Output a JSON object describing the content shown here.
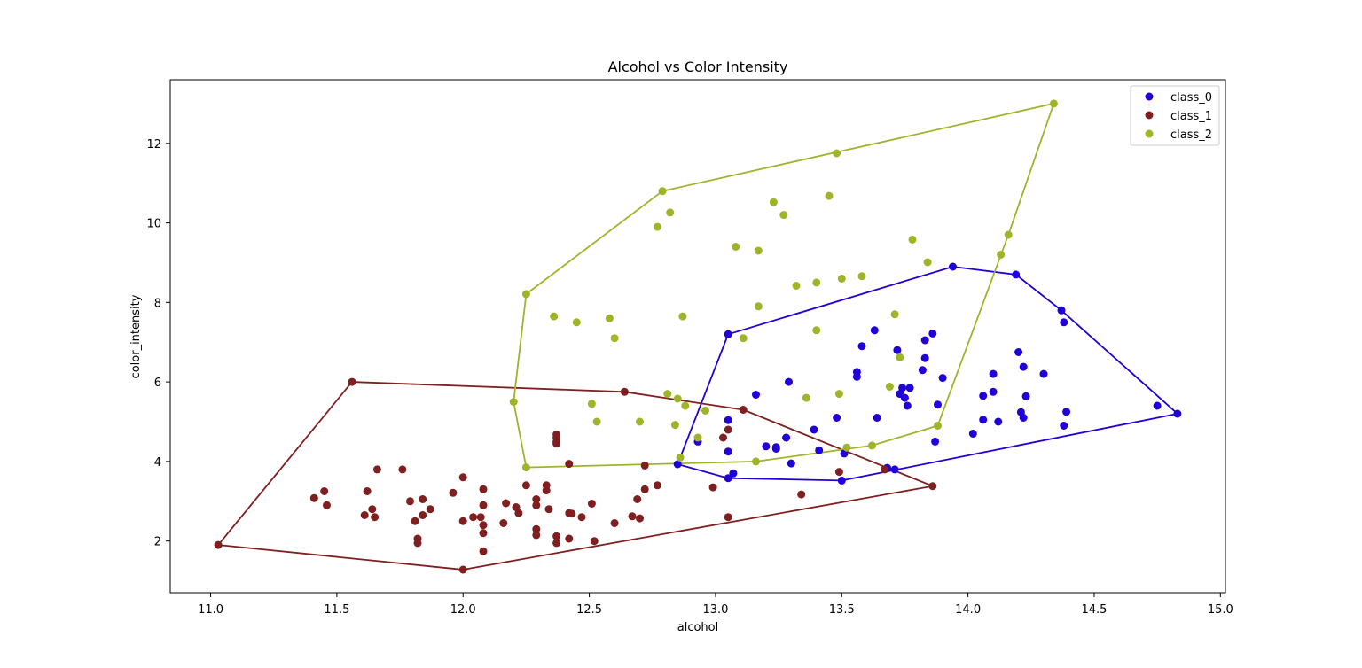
{
  "chart_data": {
    "type": "scatter",
    "title": "Alcohol vs Color Intensity",
    "xlabel": "alcohol",
    "ylabel": "color_intensity",
    "xlim": [
      10.84,
      15.02
    ],
    "ylim": [
      0.7,
      13.6
    ],
    "xticks": [
      11.0,
      11.5,
      12.0,
      12.5,
      13.0,
      13.5,
      14.0,
      14.5,
      15.0
    ],
    "xtick_labels": [
      "11.0",
      "11.5",
      "12.0",
      "12.5",
      "13.0",
      "13.5",
      "14.0",
      "14.5",
      "15.0"
    ],
    "yticks": [
      2,
      4,
      6,
      8,
      10,
      12
    ],
    "ytick_labels": [
      "2",
      "4",
      "6",
      "8",
      "10",
      "12"
    ],
    "grid": false,
    "legend_position": "top-right",
    "hull_lines": true,
    "series": [
      {
        "name": "class_0",
        "color": "#1f00d6",
        "points": [
          [
            14.23,
            5.64
          ],
          [
            13.2,
            4.38
          ],
          [
            13.16,
            5.68
          ],
          [
            14.37,
            7.8
          ],
          [
            13.24,
            4.32
          ],
          [
            14.2,
            6.75
          ],
          [
            14.39,
            5.25
          ],
          [
            14.06,
            5.05
          ],
          [
            14.83,
            5.2
          ],
          [
            13.86,
            7.22
          ],
          [
            14.1,
            5.75
          ],
          [
            14.12,
            5.0
          ],
          [
            13.75,
            5.6
          ],
          [
            14.75,
            5.4
          ],
          [
            14.38,
            7.5
          ],
          [
            13.63,
            7.3
          ],
          [
            14.3,
            6.2
          ],
          [
            13.83,
            6.6
          ],
          [
            14.19,
            8.7
          ],
          [
            13.64,
            5.1
          ],
          [
            14.06,
            5.65
          ],
          [
            12.93,
            4.5
          ],
          [
            13.71,
            3.8
          ],
          [
            12.85,
            3.93
          ],
          [
            13.5,
            3.52
          ],
          [
            13.05,
            3.58
          ],
          [
            13.39,
            4.8
          ],
          [
            13.3,
            3.95
          ],
          [
            13.87,
            4.5
          ],
          [
            14.02,
            4.7
          ],
          [
            13.73,
            5.7
          ],
          [
            13.58,
            6.9
          ],
          [
            13.68,
            3.84
          ],
          [
            13.76,
            5.4
          ],
          [
            13.51,
            4.2
          ],
          [
            13.48,
            5.1
          ],
          [
            13.28,
            4.6
          ],
          [
            13.05,
            4.25
          ],
          [
            13.07,
            3.7
          ],
          [
            14.22,
            5.1
          ],
          [
            13.56,
            6.13
          ],
          [
            13.41,
            4.28
          ],
          [
            13.88,
            5.43
          ],
          [
            13.24,
            4.36
          ],
          [
            13.05,
            5.04
          ],
          [
            14.21,
            5.24
          ],
          [
            14.38,
            4.9
          ],
          [
            13.9,
            6.1
          ],
          [
            14.1,
            6.2
          ],
          [
            13.94,
            8.9
          ],
          [
            13.05,
            7.2
          ],
          [
            13.83,
            7.05
          ],
          [
            13.82,
            6.3
          ],
          [
            13.77,
            5.85
          ],
          [
            13.74,
            5.85
          ],
          [
            13.56,
            6.25
          ],
          [
            14.22,
            6.38
          ],
          [
            13.29,
            6.0
          ],
          [
            13.72,
            6.8
          ]
        ]
      },
      {
        "name": "class_1",
        "color": "#7f1f1f",
        "points": [
          [
            12.37,
            1.95
          ],
          [
            12.33,
            3.27
          ],
          [
            12.64,
            5.75
          ],
          [
            13.67,
            3.8
          ],
          [
            12.37,
            4.45
          ],
          [
            12.17,
            2.95
          ],
          [
            12.37,
            4.6
          ],
          [
            13.11,
            5.3
          ],
          [
            12.37,
            4.68
          ],
          [
            13.34,
            3.17
          ],
          [
            12.21,
            2.85
          ],
          [
            12.29,
            3.05
          ],
          [
            13.86,
            3.38
          ],
          [
            13.49,
            3.74
          ],
          [
            12.99,
            3.35
          ],
          [
            11.96,
            3.21
          ],
          [
            11.66,
            3.8
          ],
          [
            13.03,
            4.6
          ],
          [
            11.84,
            2.65
          ],
          [
            12.33,
            3.4
          ],
          [
            12.7,
            2.57
          ],
          [
            12.0,
            2.5
          ],
          [
            12.72,
            3.9
          ],
          [
            12.08,
            2.2
          ],
          [
            13.05,
            4.8
          ],
          [
            11.84,
            3.05
          ],
          [
            12.67,
            2.62
          ],
          [
            12.16,
            2.45
          ],
          [
            11.65,
            2.6
          ],
          [
            11.64,
            2.8
          ],
          [
            12.08,
            1.74
          ],
          [
            12.08,
            2.4
          ],
          [
            12.0,
            3.6
          ],
          [
            12.69,
            3.05
          ],
          [
            12.29,
            2.15
          ],
          [
            11.62,
            3.25
          ],
          [
            12.47,
            2.6
          ],
          [
            11.81,
            2.5
          ],
          [
            12.29,
            2.9
          ],
          [
            12.37,
            4.5
          ],
          [
            12.29,
            2.3
          ],
          [
            12.08,
            3.3
          ],
          [
            12.6,
            2.45
          ],
          [
            12.34,
            2.8
          ],
          [
            11.82,
            2.06
          ],
          [
            12.51,
            2.94
          ],
          [
            12.42,
            2.7
          ],
          [
            12.25,
            3.4
          ],
          [
            12.72,
            3.3
          ],
          [
            12.22,
            2.7
          ],
          [
            11.61,
            2.65
          ],
          [
            11.46,
            2.9
          ],
          [
            12.52,
            2.0
          ],
          [
            11.76,
            3.8
          ],
          [
            11.41,
            3.08
          ],
          [
            12.08,
            2.9
          ],
          [
            11.03,
            1.9
          ],
          [
            11.82,
            1.95
          ],
          [
            12.42,
            2.06
          ],
          [
            12.77,
            3.4
          ],
          [
            12.0,
            1.28
          ],
          [
            11.45,
            3.25
          ],
          [
            11.56,
            6.0
          ],
          [
            12.42,
            3.94
          ],
          [
            13.05,
            2.6
          ],
          [
            11.87,
            2.8
          ],
          [
            12.07,
            2.6
          ],
          [
            12.43,
            2.69
          ],
          [
            11.79,
            3.0
          ],
          [
            12.37,
            2.12
          ],
          [
            12.04,
            2.6
          ]
        ]
      },
      {
        "name": "class_2",
        "color": "#a0b42a",
        "points": [
          [
            12.86,
            4.1
          ],
          [
            12.88,
            5.4
          ],
          [
            12.81,
            5.7
          ],
          [
            12.7,
            5.0
          ],
          [
            12.51,
            5.45
          ],
          [
            12.6,
            7.1
          ],
          [
            12.25,
            3.85
          ],
          [
            12.53,
            5.0
          ],
          [
            13.49,
            5.7
          ],
          [
            12.84,
            4.92
          ],
          [
            12.93,
            4.6
          ],
          [
            13.36,
            5.6
          ],
          [
            13.52,
            4.35
          ],
          [
            13.62,
            4.4
          ],
          [
            12.25,
            8.21
          ],
          [
            13.16,
            4.0
          ],
          [
            13.88,
            4.9
          ],
          [
            12.87,
            7.65
          ],
          [
            13.32,
            8.42
          ],
          [
            13.08,
            9.4
          ],
          [
            13.5,
            8.6
          ],
          [
            12.79,
            10.8
          ],
          [
            13.11,
            7.1
          ],
          [
            13.23,
            10.52
          ],
          [
            12.58,
            7.6
          ],
          [
            13.17,
            7.9
          ],
          [
            13.84,
            9.01
          ],
          [
            12.45,
            7.5
          ],
          [
            14.34,
            13.0
          ],
          [
            13.48,
            11.75
          ],
          [
            12.36,
            7.65
          ],
          [
            13.69,
            5.88
          ],
          [
            12.85,
            5.58
          ],
          [
            12.96,
            5.28
          ],
          [
            13.78,
            9.58
          ],
          [
            13.73,
            6.62
          ],
          [
            13.45,
            10.68
          ],
          [
            12.82,
            10.26
          ],
          [
            13.58,
            8.66
          ],
          [
            13.4,
            8.5
          ],
          [
            12.2,
            5.5
          ],
          [
            12.77,
            9.899999
          ],
          [
            14.16,
            9.7
          ],
          [
            13.71,
            7.7
          ],
          [
            13.4,
            7.3
          ],
          [
            13.27,
            10.2
          ],
          [
            13.17,
            9.3
          ],
          [
            14.13,
            9.2
          ]
        ]
      }
    ]
  }
}
